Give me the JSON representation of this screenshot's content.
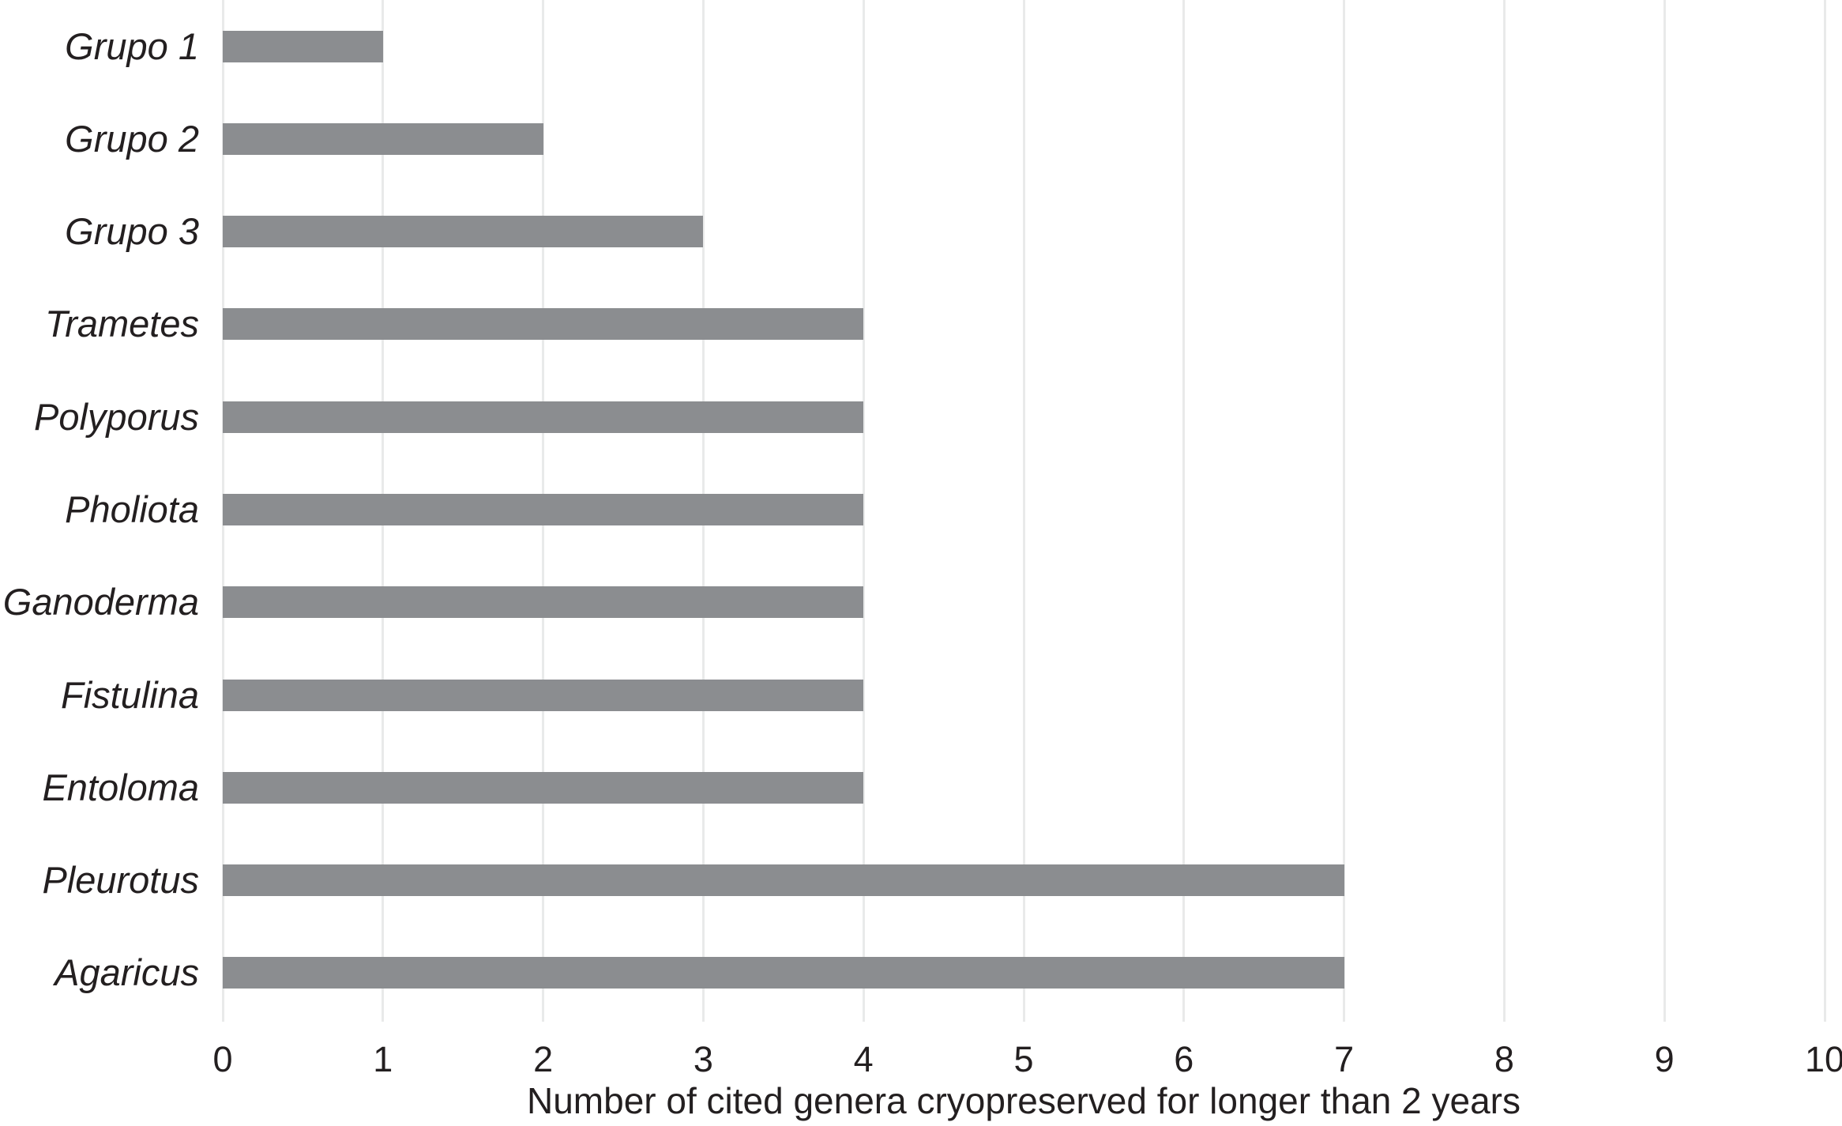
{
  "chart_data": {
    "type": "bar",
    "orientation": "horizontal",
    "categories": [
      "Grupo 1",
      "Grupo 2",
      "Grupo 3",
      "Trametes",
      "Polyporus",
      "Pholiota",
      "Ganoderma",
      "Fistulina",
      "Entoloma",
      "Pleurotus",
      "Agaricus"
    ],
    "values": [
      1,
      2,
      3,
      4,
      4,
      4,
      4,
      4,
      4,
      7,
      7
    ],
    "title": "",
    "xlabel": "Number of cited genera cryopreserved for longer than 2 years",
    "ylabel": "",
    "xlim": [
      0,
      10
    ],
    "xticks": [
      0,
      1,
      2,
      3,
      4,
      5,
      6,
      7,
      8,
      9,
      10
    ],
    "grid": true,
    "legend_position": "none",
    "category_label_style": "italic",
    "colors": {
      "bar": "#8b8d90",
      "gridline": "#e9eaea",
      "text": "#231f20",
      "background": "#ffffff"
    }
  }
}
